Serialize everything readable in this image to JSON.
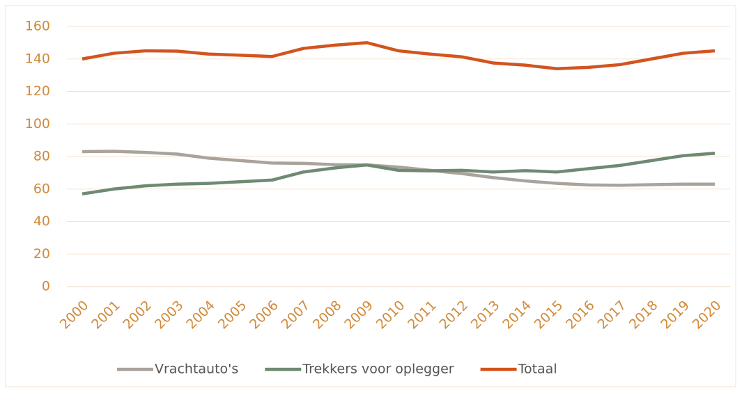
{
  "chart_data": {
    "type": "line",
    "categories": [
      "2000",
      "2001",
      "2002",
      "2003",
      "2004",
      "2005",
      "2006",
      "2007",
      "2008",
      "2009",
      "2010",
      "2011",
      "2012",
      "2013",
      "2014",
      "2015",
      "2016",
      "2017",
      "2018",
      "2019",
      "2020"
    ],
    "series": [
      {
        "name": "Vrachtauto's",
        "color": "#aaa39c",
        "values": [
          83,
          83.2,
          82.5,
          81.5,
          79,
          77.5,
          76,
          75.8,
          75,
          74.8,
          73.5,
          71.5,
          69.5,
          67,
          65,
          63.5,
          62.5,
          62.3,
          62.7,
          63,
          63
        ]
      },
      {
        "name": "Trekkers voor oplegger",
        "color": "#6f8a73",
        "values": [
          57,
          60,
          62,
          63,
          63.5,
          64.5,
          65.5,
          70.5,
          73,
          74.8,
          71.5,
          71.2,
          71.5,
          70.5,
          71.3,
          70.5,
          72.5,
          74.5,
          77.5,
          80.5,
          82
        ]
      },
      {
        "name": "Totaal",
        "color": "#d2541e",
        "values": [
          140,
          143.5,
          145,
          144.8,
          143,
          142.3,
          141.5,
          146.5,
          148.5,
          150,
          145,
          143,
          141.3,
          137.5,
          136.2,
          134,
          134.8,
          136.5,
          140,
          143.5,
          145
        ]
      }
    ],
    "ylim": [
      0,
      160
    ],
    "yticks": [
      0,
      20,
      40,
      60,
      80,
      100,
      120,
      140,
      160
    ],
    "grid": true,
    "legend": "bottom"
  }
}
